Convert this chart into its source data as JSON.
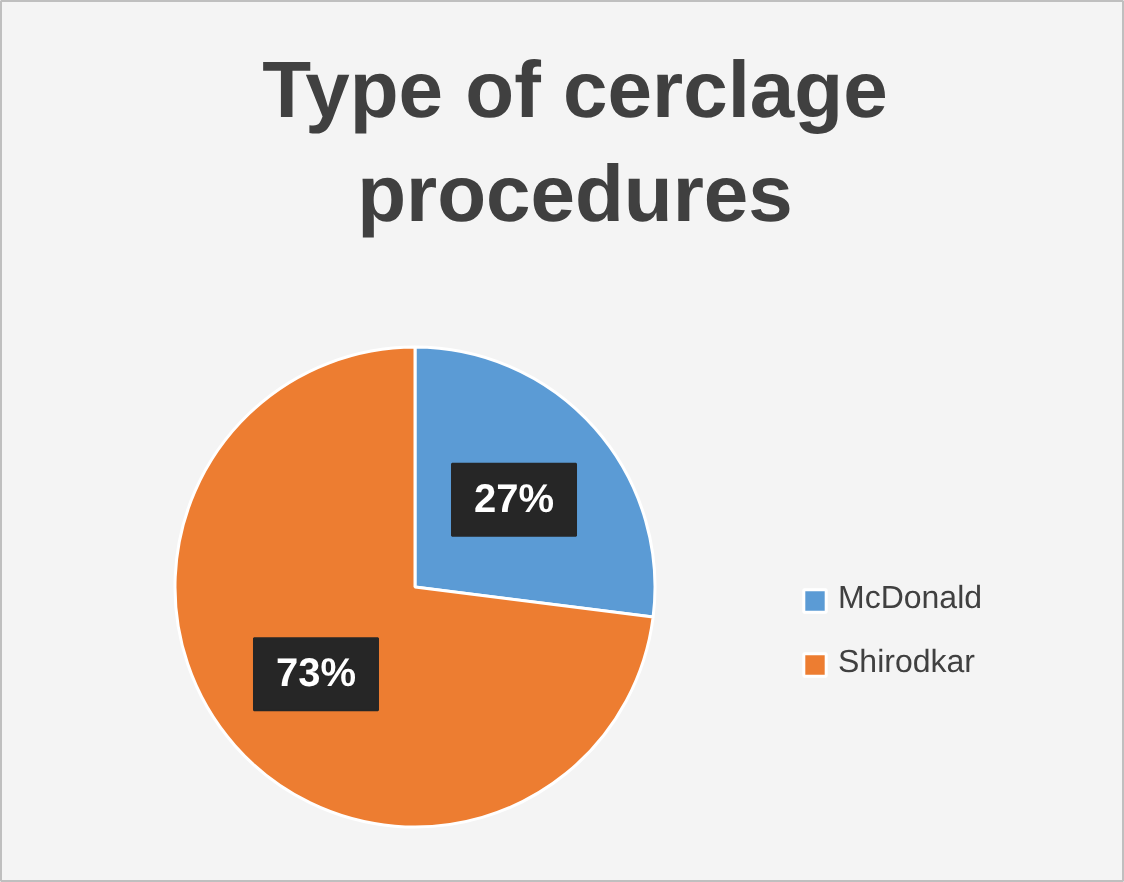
{
  "chart_data": {
    "type": "pie",
    "title": "Type of cerclage procedures",
    "categories": [
      "McDonald",
      "Shirodkar"
    ],
    "values": [
      27,
      73
    ],
    "colors": [
      "#5b9bd5",
      "#ed7d31"
    ],
    "value_labels": [
      "27%",
      "73%"
    ],
    "legend": "right"
  }
}
